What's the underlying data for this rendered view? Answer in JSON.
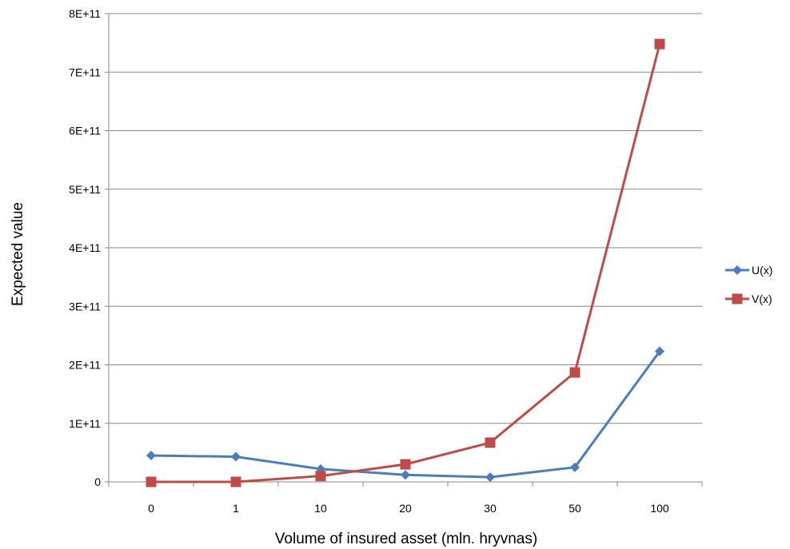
{
  "chart_data": {
    "type": "line",
    "categories": [
      "0",
      "1",
      "10",
      "20",
      "30",
      "50",
      "100"
    ],
    "series": [
      {
        "name": "U(x)",
        "color": "#4a7ebb",
        "marker": "diamond",
        "values": [
          45000000000,
          43000000000,
          22000000000,
          12000000000,
          8000000000,
          25000000000,
          223000000000
        ]
      },
      {
        "name": "V(x)",
        "color": "#be4b48",
        "marker": "square",
        "values": [
          0,
          0,
          10000000000,
          30000000000,
          67000000000,
          187000000000,
          748000000000
        ]
      }
    ],
    "y_ticks": [
      {
        "value": 0,
        "label": "0"
      },
      {
        "value": 100000000000,
        "label": "1E+11"
      },
      {
        "value": 200000000000,
        "label": "2E+11"
      },
      {
        "value": 300000000000,
        "label": "3E+11"
      },
      {
        "value": 400000000000,
        "label": "4E+11"
      },
      {
        "value": 500000000000,
        "label": "5E+11"
      },
      {
        "value": 600000000000,
        "label": "6E+11"
      },
      {
        "value": 700000000000,
        "label": "7E+11"
      },
      {
        "value": 800000000000,
        "label": "8E+11"
      }
    ],
    "ylim": [
      0,
      800000000000
    ],
    "xlabel": "Volume of insured asset (mln. hryvnas)",
    "ylabel": "Expected value",
    "grid": "horizontal",
    "legend_position": "right"
  }
}
